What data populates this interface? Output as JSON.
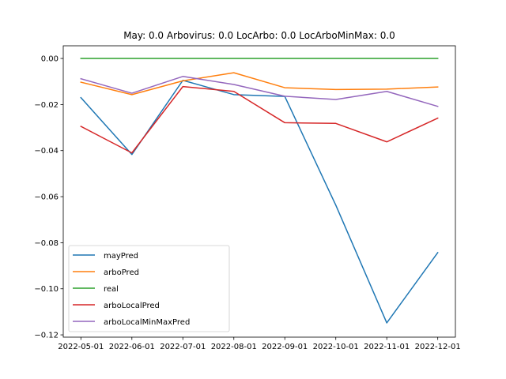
{
  "chart_data": {
    "type": "line",
    "title": "May: 0.0    Arbovirus: 0.0   LocArbo: 0.0   LocArboMinMax: 0.0",
    "xlabel": "",
    "ylabel": "",
    "x": [
      "2022-05-01",
      "2022-06-01",
      "2022-07-01",
      "2022-08-01",
      "2022-09-01",
      "2022-10-01",
      "2022-11-01",
      "2022-12-01"
    ],
    "ylim": [
      -0.121,
      0.0055
    ],
    "yticks": [
      0.0,
      -0.02,
      -0.04,
      -0.06,
      -0.08,
      -0.1,
      -0.12
    ],
    "ytick_labels": [
      "0.00",
      "−0.02",
      "−0.04",
      "−0.06",
      "−0.08",
      "−0.10",
      "−0.12"
    ],
    "grid": false,
    "legend_position": "lower-left",
    "series": [
      {
        "name": "mayPred",
        "color": "#1f77b4",
        "values": [
          -0.017,
          -0.0417,
          -0.0095,
          -0.0157,
          -0.0165,
          -0.0637,
          -0.1148,
          -0.0843
        ]
      },
      {
        "name": "arboPred",
        "color": "#ff7f0e",
        "values": [
          -0.0103,
          -0.0157,
          -0.0097,
          -0.0062,
          -0.0127,
          -0.0135,
          -0.0133,
          -0.0124
        ]
      },
      {
        "name": "real",
        "color": "#2ca02c",
        "values": [
          0.0,
          0.0,
          0.0,
          0.0,
          0.0,
          0.0,
          0.0,
          0.0
        ]
      },
      {
        "name": "arboLocalPred",
        "color": "#d62728",
        "values": [
          -0.0295,
          -0.041,
          -0.0122,
          -0.0143,
          -0.0279,
          -0.0282,
          -0.0362,
          -0.0259
        ]
      },
      {
        "name": "arboLocalMinMaxPred",
        "color": "#9467bd",
        "values": [
          -0.0088,
          -0.0151,
          -0.0078,
          -0.0113,
          -0.0164,
          -0.0178,
          -0.0143,
          -0.0208
        ]
      }
    ]
  }
}
